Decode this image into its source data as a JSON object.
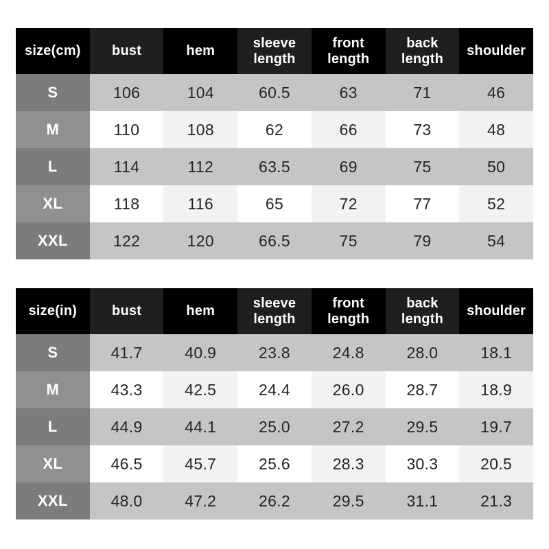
{
  "colors": {
    "page_bg": "#ffffff",
    "header_bg": "#000000",
    "header_bg_alt": "#1f1f1f",
    "header_text": "#ffffff",
    "label_bg_odd": "#7c7c7c",
    "label_bg_even": "#909090",
    "label_text": "#ffffff",
    "row_gray": "#c5c5c5",
    "row_white": "#ffffff",
    "row_white_alt": "#f2f2f2",
    "value_text": "#242424"
  },
  "tables": [
    {
      "name": "size-chart-cm",
      "header": [
        "size(cm)",
        "bust",
        "hem",
        "sleeve length",
        "front length",
        "back length",
        "shoulder"
      ],
      "rows": [
        {
          "label": "S",
          "values": [
            "106",
            "104",
            "60.5",
            "63",
            "71",
            "46"
          ]
        },
        {
          "label": "M",
          "values": [
            "110",
            "108",
            "62",
            "66",
            "73",
            "48"
          ]
        },
        {
          "label": "L",
          "values": [
            "114",
            "112",
            "63.5",
            "69",
            "75",
            "50"
          ]
        },
        {
          "label": "XL",
          "values": [
            "118",
            "116",
            "65",
            "72",
            "77",
            "52"
          ]
        },
        {
          "label": "XXL",
          "values": [
            "122",
            "120",
            "66.5",
            "75",
            "79",
            "54"
          ]
        }
      ]
    },
    {
      "name": "size-chart-in",
      "header": [
        "size(in)",
        "bust",
        "hem",
        "sleeve length",
        "front length",
        "back length",
        "shoulder"
      ],
      "rows": [
        {
          "label": "S",
          "values": [
            "41.7",
            "40.9",
            "23.8",
            "24.8",
            "28.0",
            "18.1"
          ]
        },
        {
          "label": "M",
          "values": [
            "43.3",
            "42.5",
            "24.4",
            "26.0",
            "28.7",
            "18.9"
          ]
        },
        {
          "label": "L",
          "values": [
            "44.9",
            "44.1",
            "25.0",
            "27.2",
            "29.5",
            "19.7"
          ]
        },
        {
          "label": "XL",
          "values": [
            "46.5",
            "45.7",
            "25.6",
            "28.3",
            "30.3",
            "20.5"
          ]
        },
        {
          "label": "XXL",
          "values": [
            "48.0",
            "47.2",
            "26.2",
            "29.5",
            "31.1",
            "21.3"
          ]
        }
      ]
    }
  ],
  "chart_data": [
    {
      "type": "table",
      "title": "size(cm)",
      "columns": [
        "size(cm)",
        "bust",
        "hem",
        "sleeve length",
        "front length",
        "back length",
        "shoulder"
      ],
      "rows": [
        [
          "S",
          106,
          104,
          60.5,
          63,
          71,
          46
        ],
        [
          "M",
          110,
          108,
          62,
          66,
          73,
          48
        ],
        [
          "L",
          114,
          112,
          63.5,
          69,
          75,
          50
        ],
        [
          "XL",
          118,
          116,
          65,
          72,
          77,
          52
        ],
        [
          "XXL",
          122,
          120,
          66.5,
          75,
          79,
          54
        ]
      ]
    },
    {
      "type": "table",
      "title": "size(in)",
      "columns": [
        "size(in)",
        "bust",
        "hem",
        "sleeve length",
        "front length",
        "back length",
        "shoulder"
      ],
      "rows": [
        [
          "S",
          41.7,
          40.9,
          23.8,
          24.8,
          28.0,
          18.1
        ],
        [
          "M",
          43.3,
          42.5,
          24.4,
          26.0,
          28.7,
          18.9
        ],
        [
          "L",
          44.9,
          44.1,
          25.0,
          27.2,
          29.5,
          19.7
        ],
        [
          "XL",
          46.5,
          45.7,
          25.6,
          28.3,
          30.3,
          20.5
        ],
        [
          "XXL",
          48.0,
          47.2,
          26.2,
          29.5,
          31.1,
          21.3
        ]
      ]
    }
  ]
}
